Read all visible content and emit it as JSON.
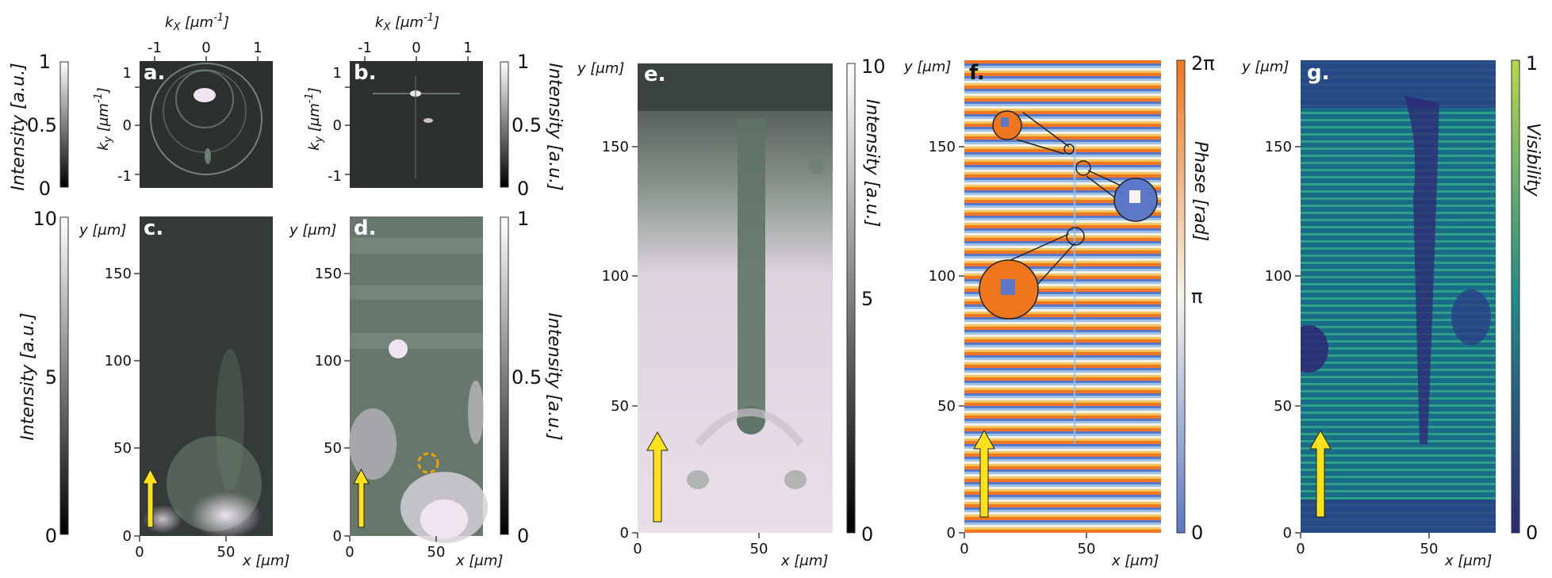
{
  "figure": {
    "colors": {
      "intensity_dark": "#2c302e",
      "intensity_light": "#efe4ef",
      "intensity_mid": "#5e7364",
      "phase_low": "#5b78c8",
      "phase_mid": "#f6f4ea",
      "phase_high": "#f0761e",
      "visibility_low": "#2d2a75",
      "visibility_mid": "#1f8c8b",
      "visibility_high": "#b6d84a",
      "arrow": "#ffe21a",
      "marker_circle": "#f0a400"
    },
    "panels": {
      "a": {
        "letter": "a.",
        "xlabel_main": "k",
        "xlabel_sub": "X",
        "xlabel_unit": " [μm",
        "xlabel_exp": "-1",
        "xlabel_close": "]",
        "ylabel_main": "k",
        "ylabel_sub": "y",
        "ylabel_unit": " [μm",
        "ylabel_exp": "-1",
        "ylabel_close": "]",
        "xticks": [
          "-1",
          "0",
          "1"
        ],
        "yticks": [
          "1",
          "0",
          "-1"
        ]
      },
      "b": {
        "letter": "b.",
        "xlabel_main": "k",
        "xlabel_sub": "X",
        "xlabel_unit": " [μm",
        "xlabel_exp": "-1",
        "xlabel_close": "]",
        "ylabel_main": "k",
        "ylabel_sub": "y",
        "ylabel_unit": " [μm",
        "ylabel_exp": "-1",
        "ylabel_close": "]",
        "xticks": [
          "-1",
          "0",
          "1"
        ],
        "yticks": [
          "1",
          "0",
          "-1"
        ]
      },
      "c": {
        "letter": "c.",
        "xlabel": "x [μm]",
        "ylabel": "y [μm]",
        "xticks": [
          "0",
          "50"
        ],
        "yticks": [
          "150",
          "100",
          "50",
          "0"
        ]
      },
      "d": {
        "letter": "d.",
        "xlabel": "x [μm]",
        "ylabel": "y [μm]",
        "xticks": [
          "0",
          "50"
        ],
        "yticks": [
          "150",
          "100",
          "50",
          "0"
        ]
      },
      "e": {
        "letter": "e.",
        "xlabel": "x [μm]",
        "ylabel": "y [μm]",
        "xticks": [
          "0",
          "50"
        ],
        "yticks": [
          "150",
          "100",
          "50",
          "0"
        ]
      },
      "f": {
        "letter": "f.",
        "xlabel": "x [μm]",
        "ylabel": "y [μm]",
        "xticks": [
          "0",
          "50"
        ],
        "yticks": [
          "150",
          "100",
          "50",
          "0"
        ]
      },
      "g": {
        "letter": "g.",
        "xlabel": "x [μm]",
        "ylabel": "y [μm]",
        "xticks": [
          "0",
          "50"
        ],
        "yticks": [
          "150",
          "100",
          "50",
          "0"
        ]
      }
    },
    "colorbars": {
      "ab_left": {
        "label": "Intensity [a.u.]",
        "ticks": [
          "1",
          "0.5",
          "0"
        ]
      },
      "ab_right": {
        "label": "Intensity [a.u.]",
        "ticks": [
          "1",
          "0.5",
          "0"
        ]
      },
      "c_left": {
        "label": "Intensity [a.u.]",
        "ticks": [
          "10",
          "5",
          "0"
        ]
      },
      "d_right": {
        "label": "Intensity [a.u.]",
        "ticks": [
          "1",
          "0.5",
          "0"
        ]
      },
      "e_right": {
        "label": "Intensity [a.u.]",
        "ticks": [
          "10",
          "5",
          "0"
        ]
      },
      "f_right": {
        "label": "Phase [rad]",
        "ticks": [
          "2π",
          "π",
          "0"
        ]
      },
      "g_right": {
        "label": "Visibility",
        "ticks": [
          "1",
          "0"
        ]
      }
    }
  }
}
